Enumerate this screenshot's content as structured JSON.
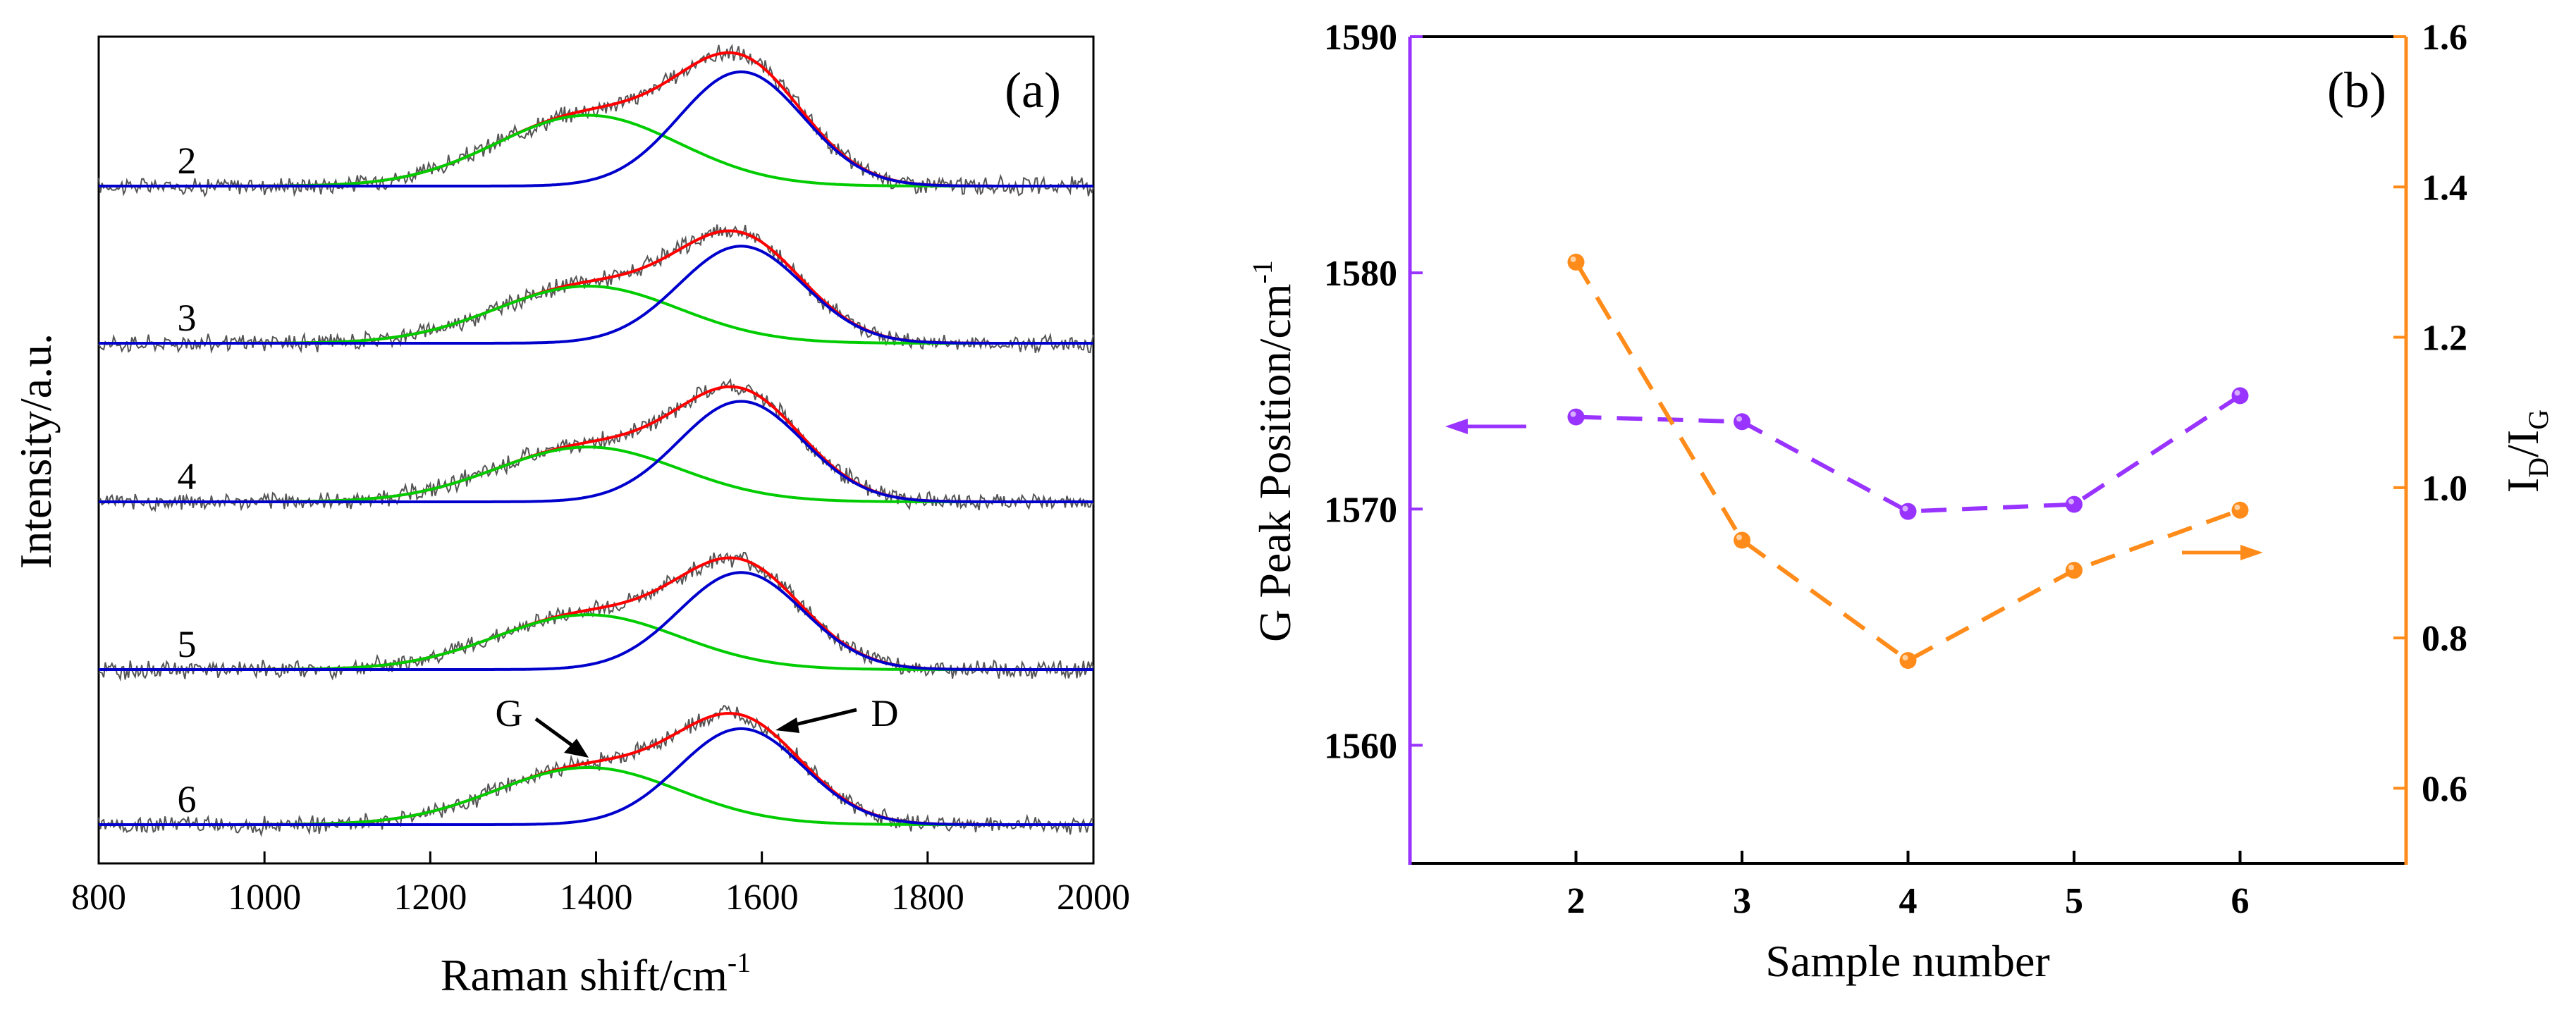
{
  "chart_data": [
    {
      "type": "line",
      "panel_label": "(a)",
      "xlabel_base": "Raman shift/cm",
      "xlabel_sup": "-1",
      "ylabel": "Intensity/a.u.",
      "xlim": [
        800,
        2000
      ],
      "x_ticks": [
        "800",
        "1000",
        "1200",
        "1400",
        "1600",
        "1800",
        "2000"
      ],
      "grid": false,
      "series_colors": {
        "raw": "#555555",
        "fit_total": "#ff0000",
        "G_band_fit": "#00cc00",
        "D_band_fit": "#0000cc"
      },
      "fit_components_cm-1": {
        "green_center": 1390,
        "green_width": 110,
        "blue_center": 1575,
        "blue_width": 75
      },
      "spectra": [
        {
          "sample": "2",
          "green_height": 0.62,
          "blue_height": 1.0
        },
        {
          "sample": "3",
          "green_height": 0.5,
          "blue_height": 0.85
        },
        {
          "sample": "4",
          "green_height": 0.48,
          "blue_height": 0.88
        },
        {
          "sample": "5",
          "green_height": 0.48,
          "blue_height": 0.85
        },
        {
          "sample": "6",
          "green_height": 0.5,
          "blue_height": 0.84
        }
      ],
      "annotations": [
        "G",
        "D"
      ]
    },
    {
      "type": "line",
      "panel_label": "(b)",
      "xlabel": "Sample number",
      "ylabel_left": "G Peak Position/cm",
      "ylabel_left_sup": "-1",
      "ylabel_right": "I",
      "ylabel_right_sub1": "D",
      "ylabel_right_sub2": "G",
      "x": [
        2,
        3,
        4,
        5,
        6
      ],
      "x_ticks": [
        "2",
        "3",
        "4",
        "5",
        "6"
      ],
      "xlim": [
        1,
        7
      ],
      "ylim_left": [
        1555,
        1590
      ],
      "y_ticks_left": [
        "1560",
        "1570",
        "1580",
        "1590"
      ],
      "ylim_right": [
        0.5,
        1.6
      ],
      "y_ticks_right": [
        "0.6",
        "0.8",
        "1.0",
        "1.2",
        "1.4",
        "1.6"
      ],
      "series": [
        {
          "name": "G Peak Position",
          "axis": "left",
          "color": "#9933ff",
          "values": [
            1573.9,
            1573.7,
            1569.9,
            1570.2,
            1574.8
          ]
        },
        {
          "name": "ID/IG",
          "axis": "right",
          "color": "#ff8c1a",
          "values": [
            1.3,
            0.93,
            0.77,
            0.89,
            0.97
          ]
        }
      ]
    }
  ]
}
